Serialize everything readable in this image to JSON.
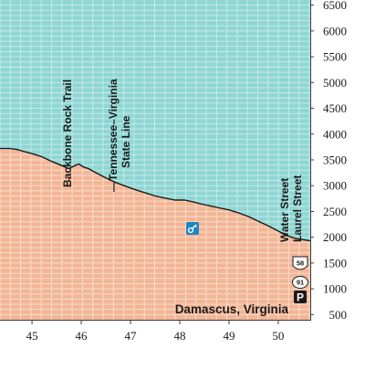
{
  "chart_data": {
    "type": "area",
    "title": "",
    "xlabel": "",
    "ylabel": "",
    "xlim": [
      44.35,
      50.65
    ],
    "ylim": [
      400,
      6600
    ],
    "x_ticks": [
      "45",
      "46",
      "47",
      "48",
      "49",
      "50"
    ],
    "y_ticks": [
      "6500",
      "6000",
      "5500",
      "5000",
      "4500",
      "4000",
      "3500",
      "3000",
      "2500",
      "2000",
      "1500",
      "1000",
      "500"
    ],
    "series": [
      {
        "x": [
          44.35,
          44.55,
          44.7,
          44.85,
          45.0,
          45.2,
          45.4,
          45.6,
          45.75,
          45.85,
          45.95,
          46.05,
          46.15,
          46.3,
          46.5,
          46.7,
          46.9,
          47.1,
          47.3,
          47.5,
          47.7,
          47.9,
          48.1,
          48.3,
          48.45,
          48.6,
          48.8,
          49.0,
          49.2,
          49.4,
          49.6,
          49.8,
          50.0,
          50.15,
          50.3,
          50.45,
          50.65
        ],
        "y": [
          3720,
          3720,
          3700,
          3660,
          3620,
          3560,
          3470,
          3390,
          3330,
          3380,
          3420,
          3360,
          3330,
          3250,
          3150,
          3060,
          2990,
          2920,
          2860,
          2800,
          2760,
          2720,
          2720,
          2680,
          2640,
          2610,
          2570,
          2530,
          2470,
          2400,
          2310,
          2220,
          2120,
          2040,
          1990,
          1960,
          1930
        ]
      }
    ],
    "annotations": [
      {
        "text": "Backbone Rock Trail",
        "x": 45.85
      },
      {
        "lines": [
          "—Tennessee–Virginia",
          "State Line"
        ],
        "x": 46.85
      },
      {
        "lines": [
          "Water Street",
          "Laurel Street"
        ],
        "x": 50.3
      }
    ],
    "place_label": "Damascus, Virginia",
    "markers": {
      "us_route": "58",
      "state_route": "91",
      "parking": "P",
      "lodging": "key"
    },
    "grid": true,
    "colors": {
      "sky": "#8fd6d4",
      "sky_grid": "#c9ecea",
      "ground": "#f2b696",
      "ground_grid": "#fbe0cf",
      "profile_line": "#1a1a1a",
      "frame": "#3a3a3a",
      "lodging_marker": "#1d84c4",
      "parking_marker": "#1a1a1a"
    }
  }
}
